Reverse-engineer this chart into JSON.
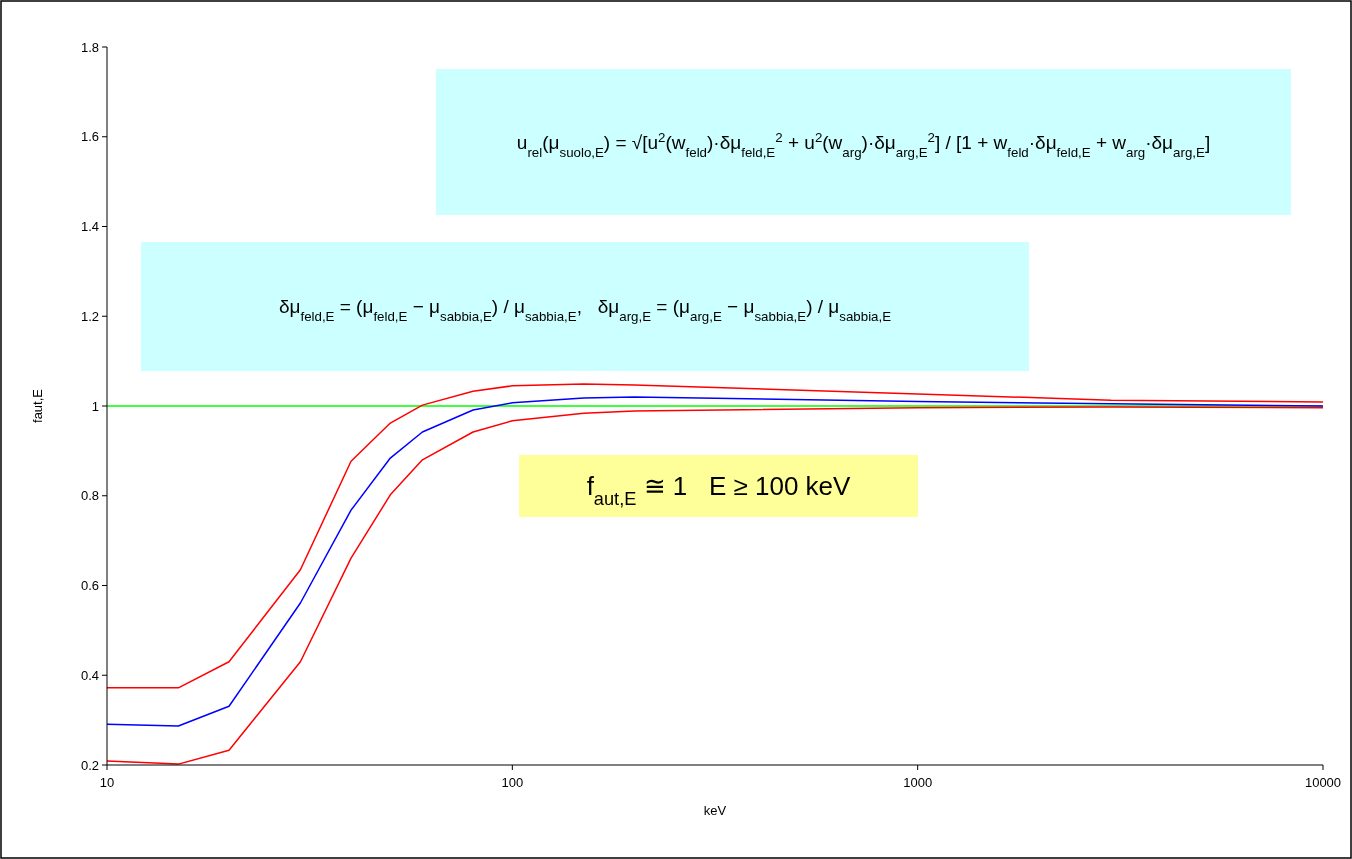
{
  "chart_data": {
    "type": "line",
    "xlabel": "keV",
    "ylabel": "faut,E",
    "log": "x",
    "x": [
      10,
      15,
      20,
      30,
      40,
      50,
      60,
      80,
      100,
      150,
      200,
      1000,
      3000,
      10000
    ],
    "series": [
      {
        "color": "#ff0000",
        "values": [
          0.372,
          0.372,
          0.43,
          0.635,
          0.877,
          0.962,
          1.002,
          1.033,
          1.045,
          1.049,
          1.047,
          1.027,
          1.013,
          1.009
        ]
      },
      {
        "color": "#0000ff",
        "values": [
          0.291,
          0.287,
          0.331,
          0.561,
          0.768,
          0.884,
          0.942,
          0.991,
          1.007,
          1.018,
          1.02,
          1.01,
          1.005,
          1.0
        ]
      },
      {
        "color": "#ff0000",
        "values": [
          0.209,
          0.202,
          0.233,
          0.43,
          0.661,
          0.802,
          0.88,
          0.942,
          0.967,
          0.984,
          0.989,
          0.996,
          0.998,
          0.996
        ]
      }
    ],
    "xlim": [
      10,
      10000
    ],
    "xticks": [
      10,
      100,
      1000,
      10000
    ],
    "ylim": [
      0.2,
      1.8
    ],
    "yticks": [
      0.2,
      0.4,
      0.6,
      0.8,
      1,
      1.2,
      1.4,
      1.6,
      1.8
    ],
    "ref_lines": [
      {
        "axis": "y",
        "value": 1,
        "color": "#00ff00"
      }
    ],
    "grid": false,
    "marker": "none",
    "line_style": "solid",
    "annotations": [
      "u$_{rel}$(μ$_{suolo,E}$) = √[u$^{2}$(w$_{feld}$)·δμ$_{feld,E}$$^{2}$ + u$^{2}$(w$_{arg}$)·δμ$_{arg,E}$$^{2}$] / [1 + w$_{feld}$·δμ$_{feld,E}$ + w$_{arg}$·δμ$_{arg,E}$]",
      "δμ$_{feld,E}$ = (μ$_{feld,E}$ − μ$_{sabbia,E}$) / μ$_{sabbia,E}$,   δμ$_{arg,E}$ = (μ$_{arg,E}$ − μ$_{sabbia,E}$) / μ$_{sabbia,E}$",
      "f$_{aut,E}$ ≅ 1   E ≥ 100 keV"
    ]
  }
}
